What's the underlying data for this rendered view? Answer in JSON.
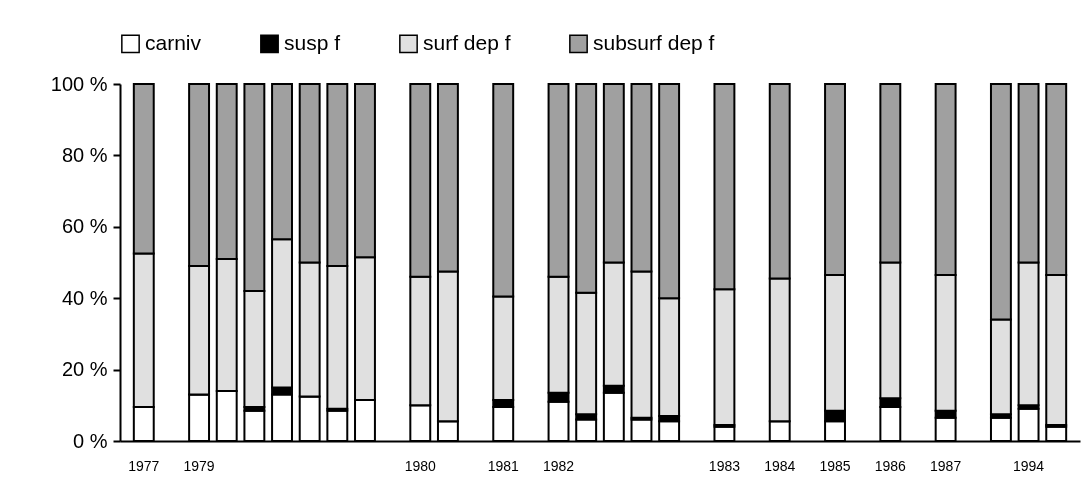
{
  "chart_data": {
    "type": "bar",
    "stacked": true,
    "legend": "top",
    "grid": false,
    "categories": [
      "1977",
      null,
      "1979",
      null,
      null,
      null,
      null,
      null,
      null,
      null,
      "1980",
      null,
      null,
      "1981",
      null,
      "1982",
      null,
      null,
      null,
      null,
      null,
      "1983",
      null,
      "1984",
      null,
      "1985",
      null,
      "1986",
      null,
      "1987",
      null,
      null,
      "1994",
      null
    ],
    "series": [
      {
        "name": "carniv",
        "color": "#ffffff",
        "values": [
          9.5,
          null,
          13,
          14,
          8.5,
          13,
          12.5,
          8.5,
          11.5,
          null,
          10,
          5.5,
          null,
          9.5,
          null,
          11,
          6,
          13.5,
          6,
          5.5,
          null,
          4,
          null,
          5.5,
          null,
          5.5,
          null,
          9.5,
          null,
          6.5,
          null,
          6.5,
          9,
          4
        ]
      },
      {
        "name": "susp f",
        "color": "#000000",
        "values": [
          0,
          null,
          0,
          0,
          1,
          2,
          0,
          0.5,
          0,
          null,
          0,
          0,
          null,
          2,
          null,
          2.5,
          1.5,
          2,
          0.5,
          1.5,
          null,
          0.5,
          null,
          0,
          null,
          3,
          null,
          2.5,
          null,
          2,
          null,
          1,
          1,
          0.5
        ]
      },
      {
        "name": "surf dep f",
        "color": "#e0e0e0",
        "values": [
          43,
          null,
          36,
          37,
          32.5,
          41.5,
          37.5,
          40,
          40,
          null,
          36,
          42,
          null,
          29,
          null,
          32.5,
          34,
          34.5,
          41,
          33,
          null,
          38,
          null,
          40,
          null,
          38,
          null,
          38,
          null,
          38,
          null,
          26.5,
          40,
          42
        ]
      },
      {
        "name": "subsurf dep f",
        "color": "#a0a0a0",
        "values": [
          47.5,
          null,
          51,
          49,
          58,
          43.5,
          50,
          51,
          48.5,
          null,
          54,
          52.5,
          null,
          59.5,
          null,
          54,
          58.5,
          50,
          52.5,
          60,
          null,
          57.5,
          null,
          54.5,
          null,
          53.5,
          null,
          50,
          null,
          53.5,
          null,
          66,
          50,
          53.5
        ]
      }
    ],
    "ylim": [
      0,
      100
    ],
    "yticks": [
      {
        "value": 0,
        "label": "0 %"
      },
      {
        "value": 20,
        "label": "20 %"
      },
      {
        "value": 40,
        "label": "40 %"
      },
      {
        "value": 60,
        "label": "60 %"
      },
      {
        "value": 80,
        "label": "80 %"
      },
      {
        "value": 100,
        "label": "100 %"
      }
    ]
  }
}
